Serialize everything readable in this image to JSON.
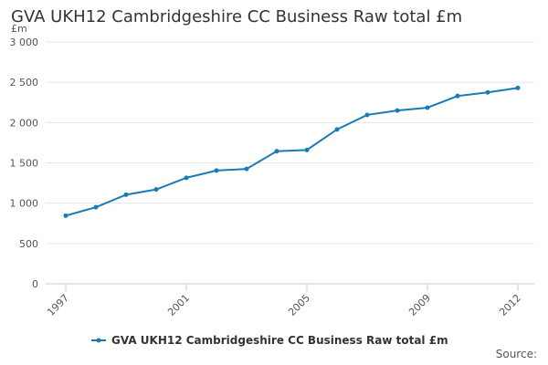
{
  "chart_data": {
    "type": "line",
    "title": "GVA UKH12 Cambridgeshire CC Business Raw total £m",
    "y_label": "£m",
    "source": "Source:",
    "x": [
      1997,
      1998,
      1999,
      2000,
      2001,
      2002,
      2003,
      2004,
      2005,
      2006,
      2007,
      2008,
      2009,
      2010,
      2011,
      2012
    ],
    "xlim": [
      1997,
      2012
    ],
    "xticks": [
      1997,
      2001,
      2005,
      2009,
      2012
    ],
    "ylim": [
      0,
      3000
    ],
    "yticks": [
      0,
      500,
      {
        "value": 1000,
        "label": "1 000"
      },
      {
        "value": 1500,
        "label": "1 500"
      },
      {
        "value": 2000,
        "label": "2 000"
      },
      {
        "value": 2500,
        "label": "2 500"
      },
      {
        "value": 3000,
        "label": "3 000"
      }
    ],
    "grid": true,
    "legend": "bottom",
    "series": [
      {
        "name": "GVA UKH12 Cambridgeshire CC Business Raw total £m",
        "color": "#1a7ab5",
        "values": [
          845,
          950,
          1105,
          1170,
          1315,
          1405,
          1425,
          1645,
          1660,
          1915,
          2095,
          2150,
          2185,
          2330,
          2375,
          2430
        ]
      }
    ]
  }
}
